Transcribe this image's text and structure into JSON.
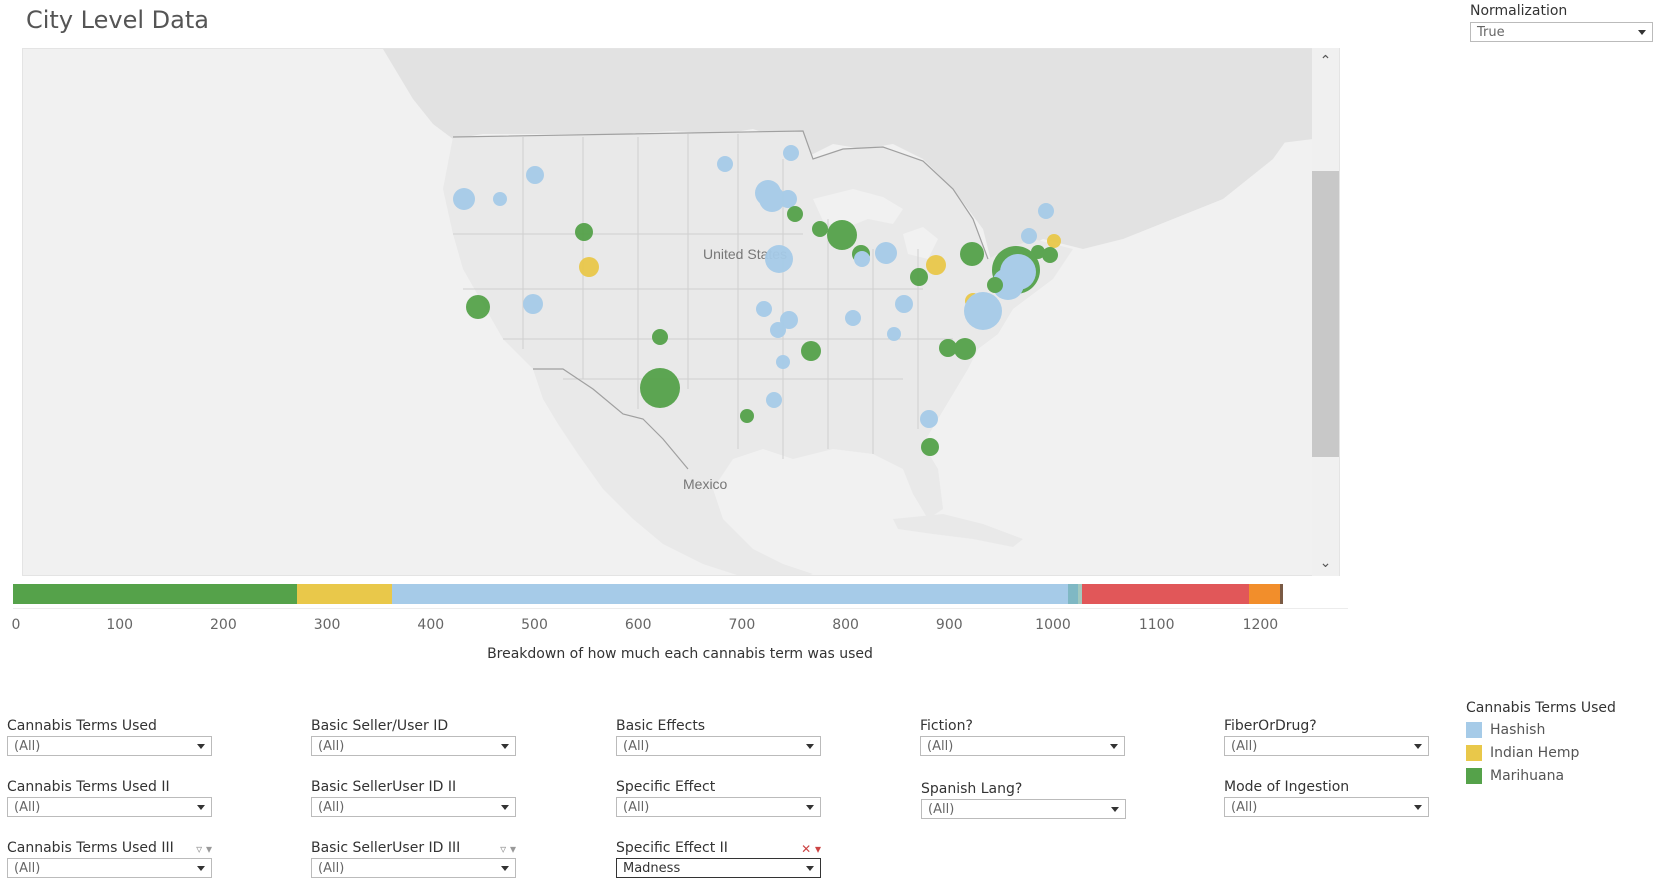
{
  "page_title": "City Level Data",
  "normalization": {
    "label": "Normalization",
    "value": "True"
  },
  "map": {
    "labels": {
      "united_states": "United States",
      "mexico": "Mexico"
    },
    "legend_colors": {
      "Hashish": "#a6cbe8",
      "Indian Hemp": "#e9c84a",
      "Marihuana": "#55a24a"
    }
  },
  "breakdown": {
    "caption": "Breakdown of how much each cannabis term was used",
    "ticks": [
      "0",
      "100",
      "200",
      "300",
      "400",
      "500",
      "600",
      "700",
      "800",
      "900",
      "1000",
      "1100",
      "1200"
    ],
    "segments": [
      {
        "name": "Marihuana",
        "start": 0,
        "end": 274,
        "color": "#55a24a"
      },
      {
        "name": "Indian Hemp",
        "start": 274,
        "end": 365,
        "color": "#e9c84a"
      },
      {
        "name": "Hashish",
        "start": 365,
        "end": 1017,
        "color": "#a6cbe8"
      },
      {
        "name": "other-a",
        "start": 1017,
        "end": 1026,
        "color": "#7fb8c4"
      },
      {
        "name": "other-b",
        "start": 1026,
        "end": 1030,
        "color": "#a2c9bf"
      },
      {
        "name": "other-c",
        "start": 1030,
        "end": 1191,
        "color": "#e15759"
      },
      {
        "name": "other-d",
        "start": 1191,
        "end": 1221,
        "color": "#f28e2b"
      },
      {
        "name": "other-e",
        "start": 1221,
        "end": 1224,
        "color": "#7a5a44"
      }
    ],
    "axis_max": 1224
  },
  "filters": {
    "col1": [
      {
        "label": "Cannabis Terms Used",
        "value": "(All)"
      },
      {
        "label": "Cannabis Terms Used II",
        "value": "(All)"
      },
      {
        "label": "Cannabis Terms Used III",
        "value": "(All)"
      }
    ],
    "col2": [
      {
        "label": "Basic Seller/User ID",
        "value": "(All)"
      },
      {
        "label": "Basic SellerUser ID II",
        "value": "(All)"
      },
      {
        "label": "Basic SellerUser ID III",
        "value": "(All)"
      }
    ],
    "col3": [
      {
        "label": "Basic Effects",
        "value": "(All)"
      },
      {
        "label": "Specific Effect",
        "value": "(All)"
      },
      {
        "label": "Specific Effect II",
        "value": "Madness"
      }
    ],
    "col4": [
      {
        "label": "Fiction?",
        "value": "(All)"
      },
      {
        "label": "Spanish Lang?",
        "value": "(All)"
      }
    ],
    "col5": [
      {
        "label": "FiberOrDrug?",
        "value": "(All)"
      },
      {
        "label": "Mode of Ingestion",
        "value": "(All)"
      }
    ]
  },
  "legend": {
    "title": "Cannabis Terms Used",
    "items": [
      {
        "label": "Hashish",
        "color": "#a6cbe8"
      },
      {
        "label": "Indian Hemp",
        "color": "#e9c84a"
      },
      {
        "label": "Marihuana",
        "color": "#55a24a"
      }
    ]
  }
}
